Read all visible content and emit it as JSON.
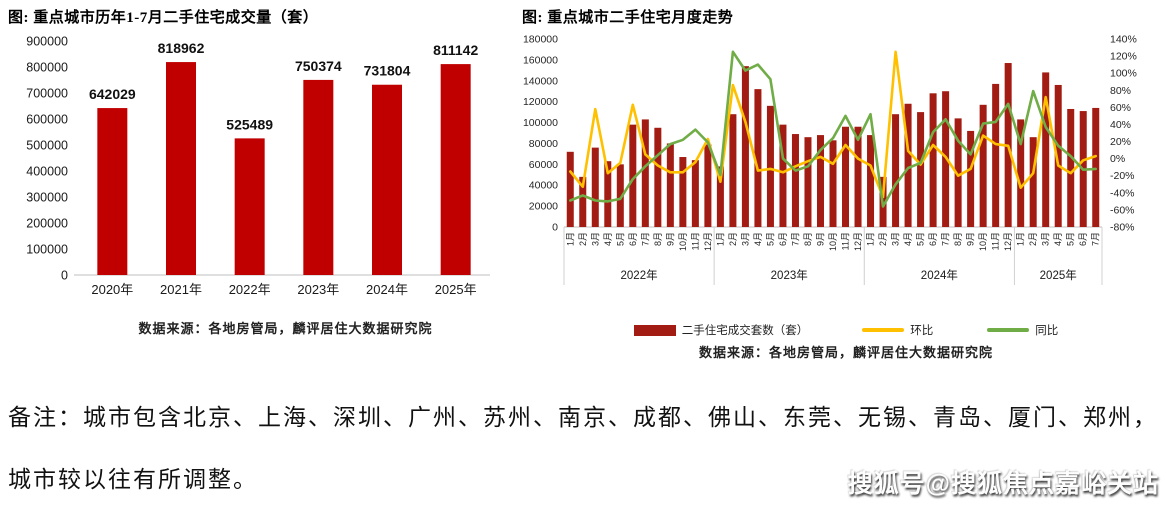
{
  "watermark": "搜狐号@搜狐焦点嘉峪关站",
  "note": {
    "line1": "备注：城市包含北京、上海、深圳、广州、苏州、南京、成都、佛山、东莞、无锡、青岛、厦门、郑州，",
    "line2": "城市较以往有所调整。"
  },
  "chart_data": [
    {
      "type": "bar",
      "title": "图: 重点城市历年1-7月二手住宅成交量（套）",
      "categories": [
        "2020年",
        "2021年",
        "2022年",
        "2023年",
        "2024年",
        "2025年"
      ],
      "values": [
        642029,
        818962,
        525489,
        750374,
        731804,
        811142
      ],
      "ylim": [
        0,
        900000
      ],
      "ytick": 100000,
      "bar_color": "#C00000",
      "grid": false,
      "data_labels": true,
      "source": "数据来源：各地房管局，麟评居住大数据研究院"
    },
    {
      "type": "combo_bar_line",
      "title": "图: 重点城市二手住宅月度走势",
      "year_groups": [
        {
          "label": "2022年",
          "months": 12
        },
        {
          "label": "2023年",
          "months": 12
        },
        {
          "label": "2024年",
          "months": 12
        },
        {
          "label": "2025年",
          "months": 7
        }
      ],
      "x_labels": [
        "1月",
        "2月",
        "3月",
        "4月",
        "5月",
        "6月",
        "7月",
        "8月",
        "9月",
        "10月",
        "11月",
        "12月",
        "1月",
        "2月",
        "3月",
        "4月",
        "5月",
        "6月",
        "7月",
        "8月",
        "9月",
        "10月",
        "11月",
        "12月",
        "1月",
        "2月",
        "3月",
        "4月",
        "5月",
        "6月",
        "7月",
        "8月",
        "9月",
        "10月",
        "11月",
        "12月",
        "1月",
        "2月",
        "3月",
        "4月",
        "5月",
        "6月",
        "7月"
      ],
      "left_axis": {
        "min": 0,
        "max": 180000,
        "tick": 20000
      },
      "right_axis": {
        "min": -80,
        "max": 140,
        "tick": 20,
        "suffix": "%"
      },
      "grid": false,
      "legend_position": "bottom",
      "series": [
        {
          "name": "二手住宅成交套数（套）",
          "type": "bar",
          "axis": "left",
          "color": "#A21C13",
          "values": [
            72000,
            48000,
            76000,
            63000,
            60000,
            98000,
            103000,
            95000,
            80000,
            67000,
            64000,
            79000,
            58000,
            108000,
            154000,
            132000,
            116000,
            98000,
            89000,
            86000,
            88000,
            83000,
            96000,
            96000,
            88000,
            48000,
            108000,
            118000,
            110000,
            128000,
            130000,
            104000,
            92000,
            117000,
            137000,
            157000,
            103000,
            86000,
            148000,
            136000,
            113000,
            111000,
            114000
          ]
        },
        {
          "name": "环比",
          "type": "line",
          "axis": "right",
          "color": "#FFC000",
          "values": [
            -15,
            -33,
            58,
            -17,
            -5,
            63,
            5,
            -8,
            -16,
            -16,
            -4,
            23,
            -27,
            86,
            43,
            -14,
            -12,
            -16,
            -9,
            -3,
            2,
            -6,
            16,
            0,
            -8,
            -45,
            125,
            9,
            -7,
            16,
            2,
            -20,
            -12,
            27,
            17,
            15,
            -34,
            -17,
            72,
            -8,
            -17,
            -2,
            3
          ]
        },
        {
          "name": "同比",
          "type": "line",
          "axis": "right",
          "color": "#70AD47",
          "values": [
            -49,
            -43,
            -49,
            -50,
            -47,
            -24,
            -9,
            4,
            17,
            22,
            34,
            19,
            -19,
            125,
            103,
            110,
            93,
            0,
            -14,
            -9,
            10,
            24,
            50,
            22,
            52,
            -56,
            -30,
            -11,
            -5,
            31,
            46,
            21,
            5,
            41,
            43,
            64,
            17,
            79,
            37,
            15,
            3,
            -13,
            -12
          ]
        }
      ],
      "source": "数据来源：各地房管局，麟评居住大数据研究院"
    }
  ]
}
